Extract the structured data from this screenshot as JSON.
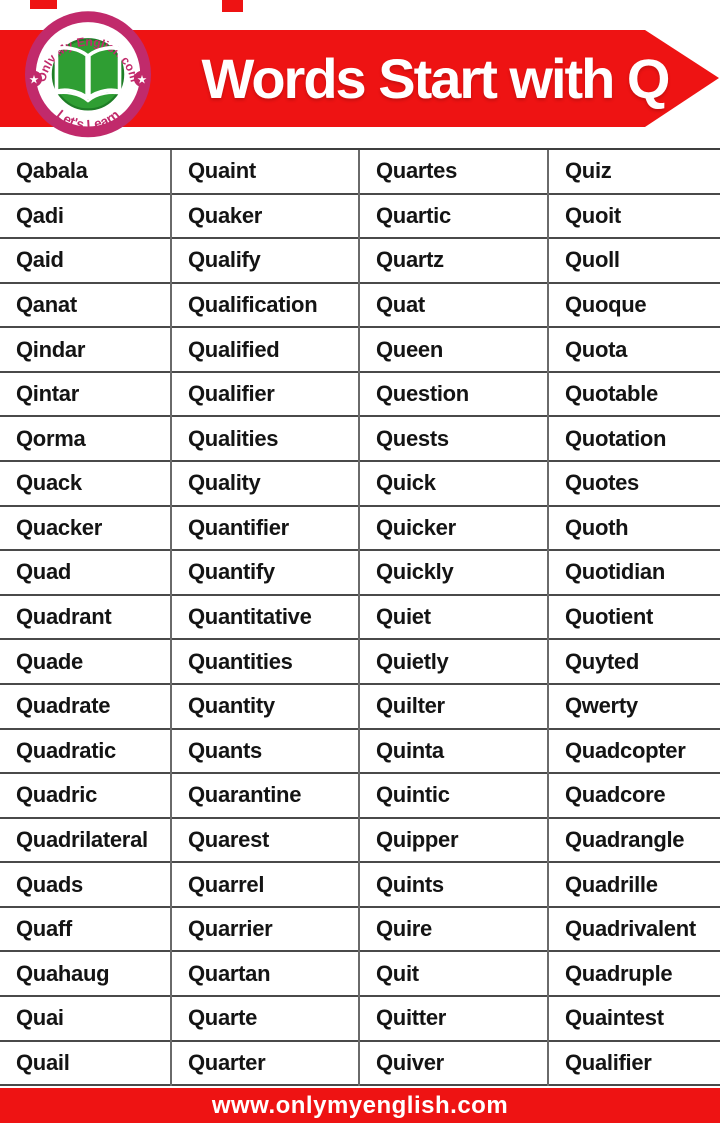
{
  "header": {
    "title": "Words Start with Q",
    "logo": {
      "arc_text": "Only My English.com",
      "bottom_text": "Let's Learn",
      "icon": "open-book"
    }
  },
  "table": {
    "columns": [
      [
        "Qabala",
        "Qadi",
        "Qaid",
        "Qanat",
        "Qindar",
        "Qintar",
        "Qorma",
        "Quack",
        "Quacker",
        "Quad",
        "Quadrant",
        "Quade",
        "Quadrate",
        "Quadratic",
        "Quadric",
        "Quadrilateral",
        "Quads",
        "Quaff",
        "Quahaug",
        "Quai",
        "Quail"
      ],
      [
        "Quaint",
        "Quaker",
        "Qualify",
        "Qualification",
        "Qualified",
        "Qualifier",
        "Qualities",
        "Quality",
        "Quantifier",
        "Quantify",
        "Quantitative",
        "Quantities",
        "Quantity",
        "Quants",
        "Quarantine",
        "Quarest",
        "Quarrel",
        "Quarrier",
        "Quartan",
        "Quarte",
        "Quarter"
      ],
      [
        "Quartes",
        "Quartic",
        "Quartz",
        "Quat",
        "Queen",
        "Question",
        "Quests",
        "Quick",
        "Quicker",
        "Quickly",
        "Quiet",
        "Quietly",
        "Quilter",
        "Quinta",
        "Quintic",
        "Quipper",
        "Quints",
        "Quire",
        "Quit",
        "Quitter",
        "Quiver"
      ],
      [
        "Quiz",
        "Quoit",
        "Quoll",
        "Quoque",
        "Quota",
        "Quotable",
        "Quotation",
        "Quotes",
        "Quoth",
        "Quotidian",
        "Quotient",
        "Quyted",
        "Qwerty",
        "Quadcopter",
        "Quadcore",
        "Quadrangle",
        "Quadrille",
        "Quadrivalent",
        "Quadruple",
        "Quaintest",
        "Qualifier"
      ]
    ]
  },
  "footer": {
    "url": "www.onlymyenglish.com"
  },
  "colors": {
    "banner_red": "#ee1313",
    "logo_pink": "#c12a6b",
    "logo_green": "#2f9e33",
    "word_text": "#141414"
  }
}
